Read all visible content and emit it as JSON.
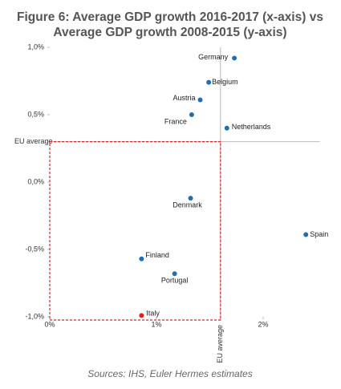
{
  "chart_data": {
    "type": "scatter",
    "title_lines": [
      "Figure 6: Average GDP growth 2016-2017 (x-axis) vs",
      "Average GDP growth 2008-2015 (y-axis)"
    ],
    "labels": [
      "Germany",
      "Belgium",
      "Austria",
      "France",
      "Netherlands",
      "Denmark",
      "Spain",
      "Finland",
      "Portugal",
      "Italy"
    ],
    "x": [
      1.73,
      1.49,
      1.41,
      1.33,
      1.66,
      1.32,
      2.4,
      0.86,
      1.17,
      0.86
    ],
    "values": [
      0.92,
      0.74,
      0.61,
      0.5,
      0.4,
      -0.12,
      -0.39,
      -0.57,
      -0.68,
      -0.99
    ],
    "colors": [
      "#1f6fb5",
      "#1f6fb5",
      "#1f6fb5",
      "#1f6fb5",
      "#1f6fb5",
      "#1f6fb5",
      "#1f6fb5",
      "#1f6fb5",
      "#1f6fb5",
      "#e02020"
    ],
    "xlim": [
      0,
      2.5
    ],
    "ylim": [
      -1,
      1
    ],
    "xticks": [
      {
        "value": 0,
        "label": "0%"
      },
      {
        "value": 1,
        "label": "1%"
      },
      {
        "value": 2,
        "label": "2%"
      }
    ],
    "yticks": [
      {
        "value": 1,
        "label": "1,0%"
      },
      {
        "value": 0.5,
        "label": "0,5%"
      },
      {
        "value": 0,
        "label": "0,0%"
      },
      {
        "value": -0.5,
        "label": "-0,5%"
      },
      {
        "value": -1,
        "label": "-1,0%"
      }
    ],
    "eu_average": {
      "label": "EU average",
      "x": 1.6,
      "y": 0.3
    },
    "box_color": "#d62728",
    "source": "Sources: IHS, Euler Hermes estimates"
  }
}
